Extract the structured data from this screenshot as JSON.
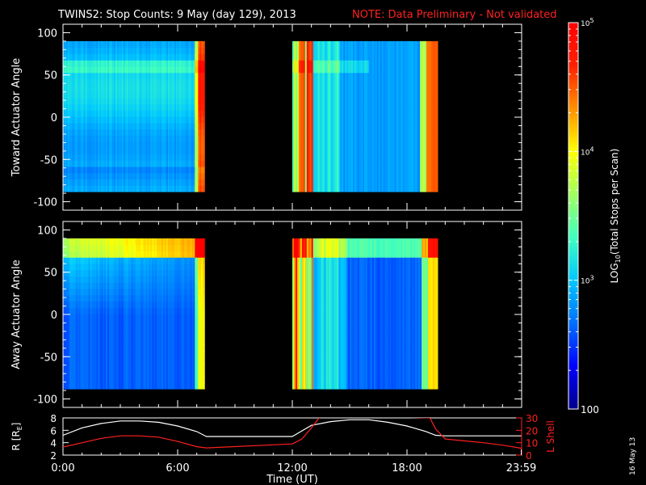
{
  "title": {
    "main": "TWINS2: Stop Counts:  9 May (day 129), 2013",
    "note": "NOTE: Data Preliminary - Not validated",
    "note_color": "#ff2020"
  },
  "chart_data": [
    {
      "type": "heatmap",
      "ylabel": "Toward Actuator Angle",
      "ylim": [
        -110,
        110
      ],
      "yticks": [
        "100",
        "50",
        "0",
        "-50",
        "-100"
      ],
      "xlim_hours": [
        0,
        24
      ],
      "grid": false,
      "data_segments_hours": [
        [
          0,
          7.4
        ],
        [
          12,
          19.6
        ]
      ],
      "angle_range": [
        -88,
        90
      ]
    },
    {
      "type": "heatmap",
      "ylabel": "Away Actuator Angle",
      "ylim": [
        -110,
        110
      ],
      "yticks": [
        "100",
        "50",
        "0",
        "-50",
        "-100"
      ],
      "xlim_hours": [
        0,
        24
      ],
      "grid": false,
      "data_segments_hours": [
        [
          0,
          7.4
        ],
        [
          12,
          19.6
        ]
      ],
      "angle_range": [
        -88,
        90
      ]
    },
    {
      "type": "line",
      "ylabel_left": "R [R",
      "ylabel_left_sub": "E",
      "ylabel_left_end": "]",
      "ylabel_right": "L Shell",
      "ylim_left": [
        2,
        8
      ],
      "ylim_right": [
        0,
        30
      ],
      "yticks_left": [
        "8",
        "6",
        "4",
        "2"
      ],
      "yticks_right": [
        "30",
        "20",
        "10",
        "0"
      ],
      "xticks": [
        "0:00",
        "6:00",
        "12:00",
        "18:00",
        "23:59"
      ],
      "xticks_hours": [
        0,
        6,
        12,
        18,
        23.98
      ],
      "xlabel": "Time (UT)",
      "series": [
        {
          "axis": "left",
          "color": "#ffffff",
          "x": [
            0,
            1,
            2,
            3,
            4,
            5,
            6,
            7,
            7.5,
            12,
            13,
            14,
            15,
            16,
            17,
            18,
            19,
            19.5,
            20,
            22,
            24
          ],
          "y": [
            5.2,
            6.4,
            7.1,
            7.5,
            7.5,
            7.3,
            6.7,
            5.8,
            5.0,
            5.0,
            6.8,
            7.4,
            7.7,
            7.7,
            7.3,
            6.7,
            5.8,
            5.2,
            5.1,
            5.1,
            5.1
          ]
        },
        {
          "axis": "right",
          "color": "#ff2020",
          "x": [
            0,
            1,
            2,
            3,
            4,
            5,
            6,
            7,
            7.5,
            12,
            12.5,
            13,
            13.4,
            13.6,
            19.2,
            19.5,
            20,
            21,
            22,
            23,
            24
          ],
          "y": [
            6.5,
            10,
            13.5,
            15.5,
            15.5,
            14.5,
            11,
            6.8,
            5.8,
            9,
            13,
            22,
            30,
            32,
            30,
            21,
            13,
            11.5,
            10,
            8,
            5.5
          ]
        }
      ]
    }
  ],
  "colorbar": {
    "label_prefix": "LOG",
    "label_sub": "10",
    "label_suffix": "(Total Stops per Scan)",
    "ticks": [
      {
        "base": "10",
        "exp": "5",
        "value": 5
      },
      {
        "base": "10",
        "exp": "4",
        "value": 4
      },
      {
        "base": "10",
        "exp": "3",
        "value": 3
      },
      {
        "base": "100",
        "exp": "",
        "value": 2
      }
    ],
    "range": [
      2,
      5
    ],
    "colors": [
      "#00008c",
      "#0000ff",
      "#0070ff",
      "#00c8ff",
      "#40ffbf",
      "#a0ff60",
      "#ffff00",
      "#ff9000",
      "#ff2000",
      "#ff0000"
    ]
  },
  "stamp": "16 May 13"
}
